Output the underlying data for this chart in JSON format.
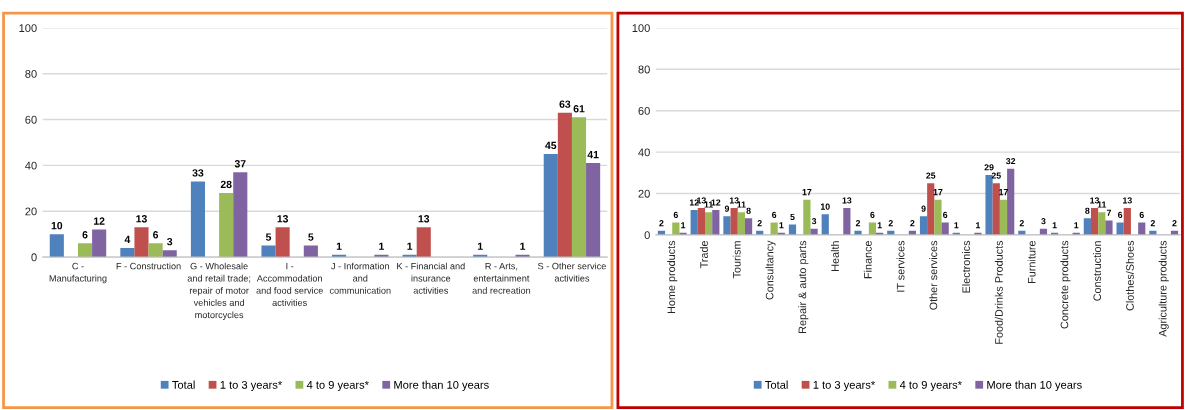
{
  "chart_data": [
    {
      "type": "bar",
      "categories": [
        "C -\nManufacturing",
        "F - Construction",
        "G - Wholesale\nand retail trade;\nrepair of motor\nvehicles and\nmotorcycles",
        "I -\nAccommodation\nand food service\nactivities",
        "J - Information\nand\ncommunication",
        "K - Financial and\ninsurance\nactivities",
        "R - Arts,\nentertainment\nand recreation",
        "S - Other service\nactivities"
      ],
      "series": [
        {
          "name": "Total",
          "color": "#4f81bd",
          "values": [
            10,
            4,
            33,
            5,
            1,
            1,
            1,
            45
          ]
        },
        {
          "name": "1 to 3 years*",
          "color": "#c0504d",
          "values": [
            null,
            13,
            null,
            13,
            null,
            13,
            null,
            63
          ]
        },
        {
          "name": "4 to 9 years*",
          "color": "#9bbb59",
          "values": [
            6,
            6,
            28,
            null,
            null,
            null,
            null,
            61
          ]
        },
        {
          "name": "More than 10 years",
          "color": "#8064a2",
          "values": [
            12,
            3,
            37,
            5,
            1,
            null,
            1,
            41
          ]
        }
      ],
      "ylim": [
        0,
        100
      ],
      "yticks": [
        0,
        20,
        40,
        60,
        80,
        100
      ],
      "grid": "y",
      "legend": "bottom",
      "data_labels": true
    },
    {
      "type": "bar",
      "categories": [
        "Home products",
        "Trade",
        "Tourism",
        "Consultancy",
        "Repair & auto parts",
        "Health",
        "Finance",
        "IT services",
        "Other services",
        "Electronics",
        "Food/Drinks Products",
        "Furniture",
        "Concrete products",
        "Construction",
        "Clothes/Shoes",
        "Agriculture products"
      ],
      "series": [
        {
          "name": "Total",
          "color": "#4f81bd",
          "values": [
            2,
            12,
            9,
            2,
            5,
            10,
            2,
            2,
            9,
            1,
            29,
            2,
            1,
            8,
            6,
            2
          ]
        },
        {
          "name": "1 to 3 years*",
          "color": "#c0504d",
          "values": [
            null,
            13,
            13,
            null,
            null,
            null,
            null,
            null,
            25,
            null,
            25,
            null,
            null,
            13,
            13,
            null
          ]
        },
        {
          "name": "4 to 9 years*",
          "color": "#9bbb59",
          "values": [
            6,
            11,
            11,
            6,
            17,
            null,
            6,
            null,
            17,
            null,
            17,
            null,
            null,
            11,
            null,
            null
          ]
        },
        {
          "name": "More than 10 years",
          "color": "#8064a2",
          "values": [
            1,
            12,
            8,
            1,
            3,
            13,
            1,
            2,
            6,
            1,
            32,
            3,
            1,
            7,
            6,
            2
          ]
        }
      ],
      "ylim": [
        0,
        100
      ],
      "yticks": [
        0,
        20,
        40,
        60,
        80,
        100
      ],
      "grid": "y",
      "legend": "bottom",
      "data_labels": true
    }
  ]
}
